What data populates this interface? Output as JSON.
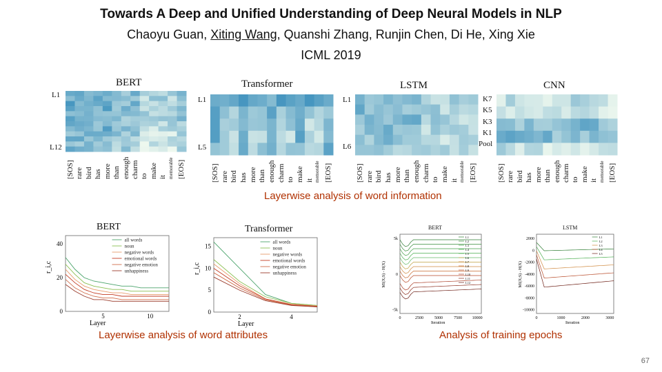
{
  "header": {
    "title": "Towards A Deep and Unified Understanding of Deep Neural Models in NLP",
    "authors_pre": "Chaoyu Guan, ",
    "authors_underlined": "Xiting Wang",
    "authors_post": ", Quanshi Zhang, Runjin Chen, Di He, Xing Xie",
    "venue": "ICML 2019"
  },
  "heatmaps": {
    "caption": "Layerwise analysis of word information",
    "words": [
      "[SOS]",
      "rare",
      "bird",
      "has",
      "more",
      "than",
      "enough",
      "charm",
      "to",
      "make",
      "it",
      "memorable",
      "[EOS]"
    ],
    "panels": [
      {
        "title": "BERT",
        "row_labels": [
          "L1",
          "L12"
        ]
      },
      {
        "title": "Transformer",
        "row_labels": [
          "L1",
          "L5"
        ]
      },
      {
        "title": "LSTM",
        "row_labels": [
          "L1",
          "L6"
        ]
      },
      {
        "title": "CNN",
        "row_labels": [
          "K7",
          "K5",
          "K3",
          "K1",
          "Pool"
        ]
      }
    ]
  },
  "attributes": {
    "caption": "Layerwise analysis of word attributes",
    "panels": [
      {
        "title": "BERT",
        "xlabel": "Layer",
        "ylabel": "r_i,c",
        "yticks": [
          "0",
          "20",
          "40"
        ],
        "xticks": [
          "5",
          "10"
        ]
      },
      {
        "title": "Transformer",
        "xlabel": "Layer",
        "ylabel": "r_i,c",
        "yticks": [
          "0",
          "5",
          "10",
          "15"
        ],
        "xticks": [
          "2",
          "4"
        ]
      }
    ],
    "legend": [
      "all words",
      "noun",
      "negative words",
      "emotional words",
      "negative emotion",
      "unhappiness"
    ]
  },
  "epochs": {
    "caption": "Analysis of training epochs",
    "panels": [
      {
        "title": "BERT",
        "xlabel": "Iteration",
        "ylabel": "MI(X;S) - H(X)",
        "xticks": [
          "0",
          "2500",
          "5000",
          "7500",
          "10000"
        ],
        "yticks": [
          "5k",
          "0",
          "-5k"
        ],
        "legend": [
          "L1",
          "L2",
          "L3",
          "L4",
          "L5",
          "L6",
          "L7",
          "L8",
          "L9",
          "L10",
          "L11",
          "L12"
        ]
      },
      {
        "title": "LSTM",
        "xlabel": "Iteration",
        "ylabel": "MI(X;S) - H(X)",
        "xticks": [
          "0",
          "1000",
          "2000",
          "3000"
        ],
        "yticks": [
          "2000",
          "0",
          "-2000",
          "-4000",
          "-6000",
          "-8000",
          "-10000"
        ],
        "legend": [
          "L1",
          "L2",
          "L3",
          "L4",
          "L5"
        ]
      }
    ]
  },
  "page_number": "67",
  "colors": {
    "caption": "#b03000",
    "heatmap_low": "#f3fbf0",
    "heatmap_high": "#2b86b8"
  }
}
